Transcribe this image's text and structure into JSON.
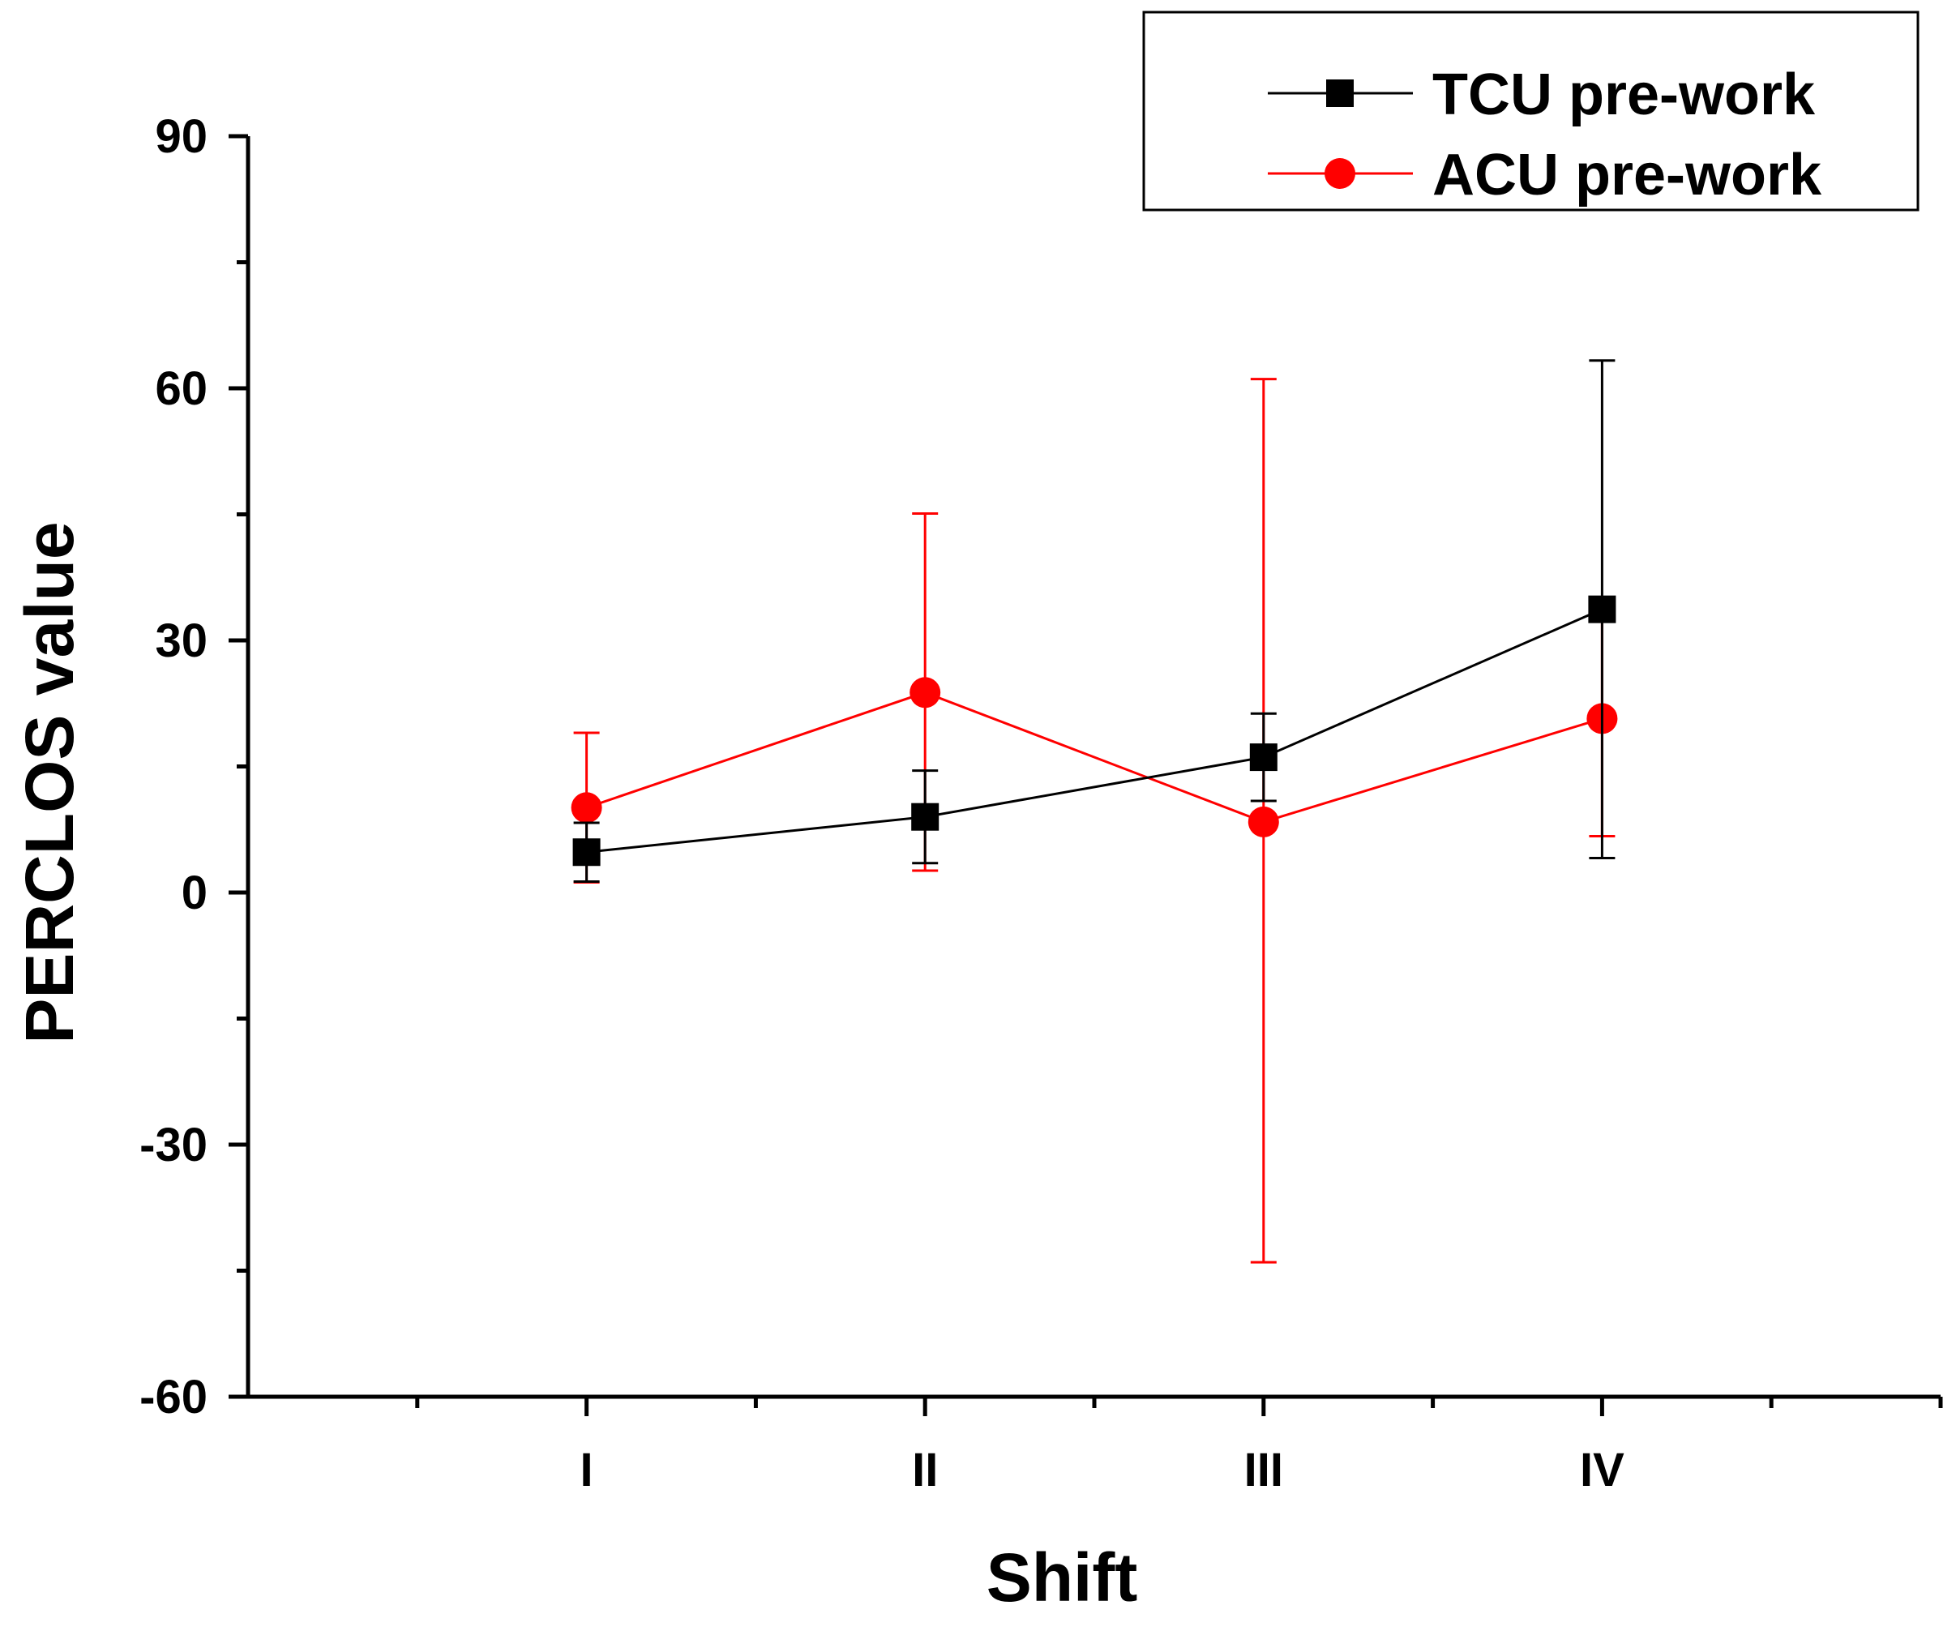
{
  "chart_data": {
    "type": "line",
    "title": "",
    "xlabel": "Shift",
    "ylabel": "PERCLOS value",
    "categories": [
      "I",
      "II",
      "III",
      "IV"
    ],
    "ylim": [
      -60,
      90
    ],
    "yticks": [
      -60,
      -30,
      0,
      30,
      60,
      90
    ],
    "grid": false,
    "legend_position": "top-right",
    "series": [
      {
        "name": "TCU pre-work",
        "color": "#000000",
        "marker": "square",
        "values": [
          4.8,
          9.0,
          16.1,
          33.7
        ],
        "error_upper": [
          8.3,
          14.5,
          21.3,
          63.3
        ],
        "error_lower": [
          1.3,
          3.5,
          10.9,
          4.1
        ]
      },
      {
        "name": "ACU pre-work",
        "color": "#ff0000",
        "marker": "circle",
        "values": [
          10.1,
          23.8,
          8.4,
          20.7
        ],
        "error_upper": [
          19.0,
          45.1,
          61.1,
          34.7
        ],
        "error_lower": [
          1.2,
          2.6,
          -44.0,
          6.7
        ]
      }
    ]
  }
}
